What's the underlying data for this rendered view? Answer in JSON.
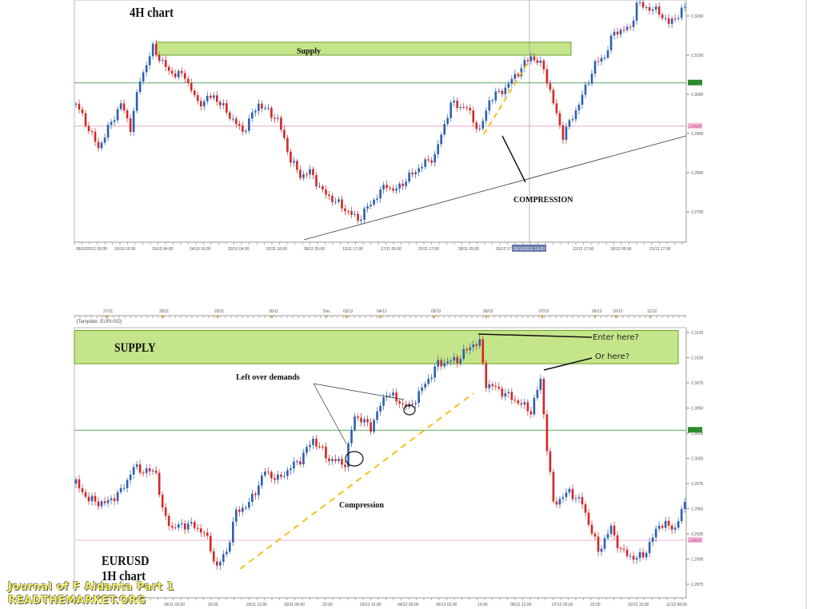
{
  "colors": {
    "up": "#2b5fb0",
    "down": "#d42626",
    "supply_zone": "#c5e58a",
    "supply_border": "#6aa02a",
    "green_level": "#2f8a2f",
    "pink_level": "#e69bc0",
    "dashed": "#f2c21a"
  },
  "watermark": {
    "line1": "Journal of F Aldanta Part 1",
    "line2": "READTHEMARKET.ORG"
  },
  "chart_data": [
    {
      "type": "candlestick",
      "title": "4H chart",
      "instrument_hidden_top": true,
      "ylim": [
        1.262,
        1.324
      ],
      "yticks": [
        "1.3200",
        "1.3100",
        "1.3000",
        "1.2900",
        "1.2800",
        "1.2700"
      ],
      "ytick_values": [
        1.32,
        1.31,
        1.3,
        1.29,
        1.28,
        1.27
      ],
      "xticks": [
        "09/10/2012 00:00",
        "19/10 16:00",
        "19/10 04:00",
        "24/10 16:00",
        "30/10 04:00",
        "02/11 16:00",
        "08/11 05:00",
        "13/11 17:00",
        "17/11 05:00",
        "22/11 17:00",
        "28/11 05:00",
        "03/12 17:00",
        "12/12 17:00",
        "18/12 05:00",
        "21/12 17:00"
      ],
      "crosshair_label": "05/12/2012 19:00",
      "bars": 190,
      "close_waypoints": [
        [
          0,
          1.2976
        ],
        [
          7,
          1.2863
        ],
        [
          14,
          1.2976
        ],
        [
          17,
          1.2915
        ],
        [
          20,
          1.3037
        ],
        [
          24,
          1.3118
        ],
        [
          29,
          1.3057
        ],
        [
          34,
          1.3047
        ],
        [
          38,
          1.2976
        ],
        [
          43,
          1.2996
        ],
        [
          49,
          1.2935
        ],
        [
          52,
          1.2904
        ],
        [
          57,
          1.2976
        ],
        [
          63,
          1.2935
        ],
        [
          67,
          1.2833
        ],
        [
          70,
          1.2792
        ],
        [
          73,
          1.2802
        ],
        [
          77,
          1.2751
        ],
        [
          82,
          1.272
        ],
        [
          88,
          1.268
        ],
        [
          93,
          1.2731
        ],
        [
          97,
          1.2771
        ],
        [
          99,
          1.2751
        ],
        [
          107,
          1.2812
        ],
        [
          112,
          1.2843
        ],
        [
          117,
          1.2976
        ],
        [
          122,
          1.2965
        ],
        [
          126,
          1.2904
        ],
        [
          129,
          1.2986
        ],
        [
          134,
          1.3016
        ],
        [
          142,
          1.3098
        ],
        [
          146,
          1.3067
        ],
        [
          149,
          1.2976
        ],
        [
          152,
          1.2894
        ],
        [
          157,
          1.2976
        ],
        [
          162,
          1.3077
        ],
        [
          165,
          1.3098
        ],
        [
          168,
          1.3159
        ],
        [
          173,
          1.3169
        ],
        [
          175,
          1.3231
        ],
        [
          182,
          1.321
        ],
        [
          185,
          1.318
        ],
        [
          190,
          1.322
        ]
      ],
      "levels": {
        "green": 1.3029,
        "pink": 1.29187,
        "pink_label": "1.29187"
      },
      "supply_zone": {
        "low": 1.31,
        "high": 1.3133,
        "from_bar": 25,
        "to_bar": 155,
        "label": "Supply"
      },
      "annotations": {
        "compression": "COMPRESSION"
      }
    },
    {
      "type": "candlestick",
      "title_line1": "EURUSD",
      "title_line2": "1H chart",
      "template_label": "[Template: EURUSD]",
      "ylim": [
        1.286,
        1.3135
      ],
      "yticks": [
        "1.3125",
        "1.3100",
        "1.3075",
        "1.3050",
        "1.3025",
        "1.3000",
        "1.2975",
        "1.2950",
        "1.2925",
        "1.2900",
        "1.2875"
      ],
      "ytick_values": [
        1.3125,
        1.31,
        1.3075,
        1.305,
        1.3025,
        1.3,
        1.2975,
        1.295,
        1.2925,
        1.29,
        1.2875
      ],
      "xticks": [
        "28/11 03:00",
        "20:00",
        "29/11 13:00",
        "30/11 06:00",
        "23:00",
        "03/12 16:00",
        "04/12 09:00",
        "05/12 02:00",
        "19:00",
        "06/12 12:00",
        "07/12 05:00",
        "22:00",
        "10/12 15:00",
        "11/12 08:00"
      ],
      "date_strip": [
        "27/11",
        "28/11",
        "29/11",
        "30/11",
        "Dec",
        "03/12",
        "04/12",
        "05/12",
        "06/12",
        "07/12",
        "09/12",
        "10/12",
        "11/12"
      ],
      "bars": 190,
      "close_waypoints": [
        [
          0,
          1.2975
        ],
        [
          4,
          1.2959
        ],
        [
          9,
          1.2955
        ],
        [
          14,
          1.2967
        ],
        [
          18,
          1.2991
        ],
        [
          22,
          1.2987
        ],
        [
          25,
          1.2987
        ],
        [
          27,
          1.2947
        ],
        [
          30,
          1.2931
        ],
        [
          35,
          1.2935
        ],
        [
          40,
          1.2927
        ],
        [
          44,
          1.2892
        ],
        [
          47,
          1.2908
        ],
        [
          50,
          1.2947
        ],
        [
          54,
          1.2955
        ],
        [
          59,
          1.2987
        ],
        [
          63,
          1.2979
        ],
        [
          67,
          1.2991
        ],
        [
          70,
          1.2999
        ],
        [
          74,
          1.3019
        ],
        [
          79,
          1.2999
        ],
        [
          84,
          1.2995
        ],
        [
          87,
          1.3043
        ],
        [
          92,
          1.3031
        ],
        [
          97,
          1.3066
        ],
        [
          100,
          1.3058
        ],
        [
          104,
          1.305
        ],
        [
          109,
          1.3074
        ],
        [
          113,
          1.3094
        ],
        [
          119,
          1.3098
        ],
        [
          124,
          1.3114
        ],
        [
          126,
          1.3114
        ],
        [
          128,
          1.3074
        ],
        [
          131,
          1.307
        ],
        [
          137,
          1.3058
        ],
        [
          142,
          1.3047
        ],
        [
          145,
          1.3078
        ],
        [
          147,
          1.3011
        ],
        [
          149,
          1.2955
        ],
        [
          154,
          1.2967
        ],
        [
          158,
          1.2955
        ],
        [
          163,
          1.2908
        ],
        [
          167,
          1.2931
        ],
        [
          170,
          1.2908
        ],
        [
          175,
          1.29
        ],
        [
          178,
          1.2908
        ],
        [
          182,
          1.2935
        ],
        [
          187,
          1.2931
        ],
        [
          190,
          1.2955
        ]
      ],
      "levels": {
        "green": 1.3028,
        "pink": 1.29187,
        "pink_label": "1.29187"
      },
      "supply_zone": {
        "low": 1.3094,
        "high": 1.3127,
        "label": "SUPPLY"
      },
      "annotations": {
        "left_over": "Left over demands",
        "compression": "Compression",
        "enter": "Enter here?",
        "or_here": "Or here?"
      }
    }
  ]
}
